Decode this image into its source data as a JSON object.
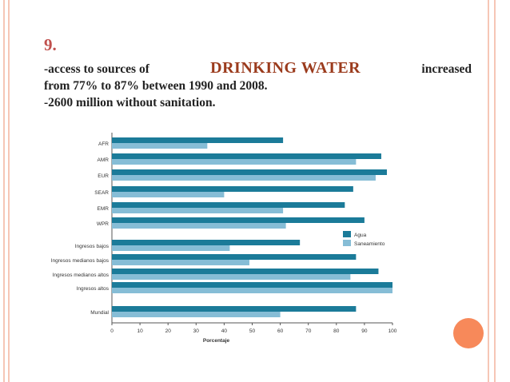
{
  "slide": {
    "number": "9.",
    "line1_before": "-access to sources of",
    "line1_highlight": "DRINKING WATER",
    "line1_after": "increased",
    "line2": "from 77% to 87% between 1990 and 2008.",
    "line3": "-2600 million without sanitation."
  },
  "colors": {
    "agua": "#1b7b99",
    "saneamiento": "#86bdd6",
    "accent": "#c0504d",
    "highlight_text": "#9b3b1d",
    "decor": "#f6c6b6",
    "circle": "#f7895a"
  },
  "chart_data": {
    "type": "bar",
    "orientation": "horizontal",
    "categories": [
      "AFR",
      "AMR",
      "EUR",
      "SEAR",
      "EMR",
      "WPR",
      "Ingresos bajos",
      "Ingresos medianos bajos",
      "Ingresos medianos altos",
      "Ingresos altos",
      "Mundial"
    ],
    "series": [
      {
        "name": "Agua",
        "values": [
          61,
          96,
          98,
          86,
          83,
          90,
          67,
          87,
          95,
          100,
          87
        ]
      },
      {
        "name": "Saneamiento",
        "values": [
          34,
          87,
          94,
          40,
          61,
          62,
          42,
          49,
          85,
          100,
          60
        ]
      }
    ],
    "xlabel": "Porcentaje",
    "xlim": [
      0,
      100
    ],
    "xticks": [
      0,
      10,
      20,
      30,
      40,
      50,
      60,
      70,
      80,
      90,
      100
    ],
    "legend": "right"
  }
}
